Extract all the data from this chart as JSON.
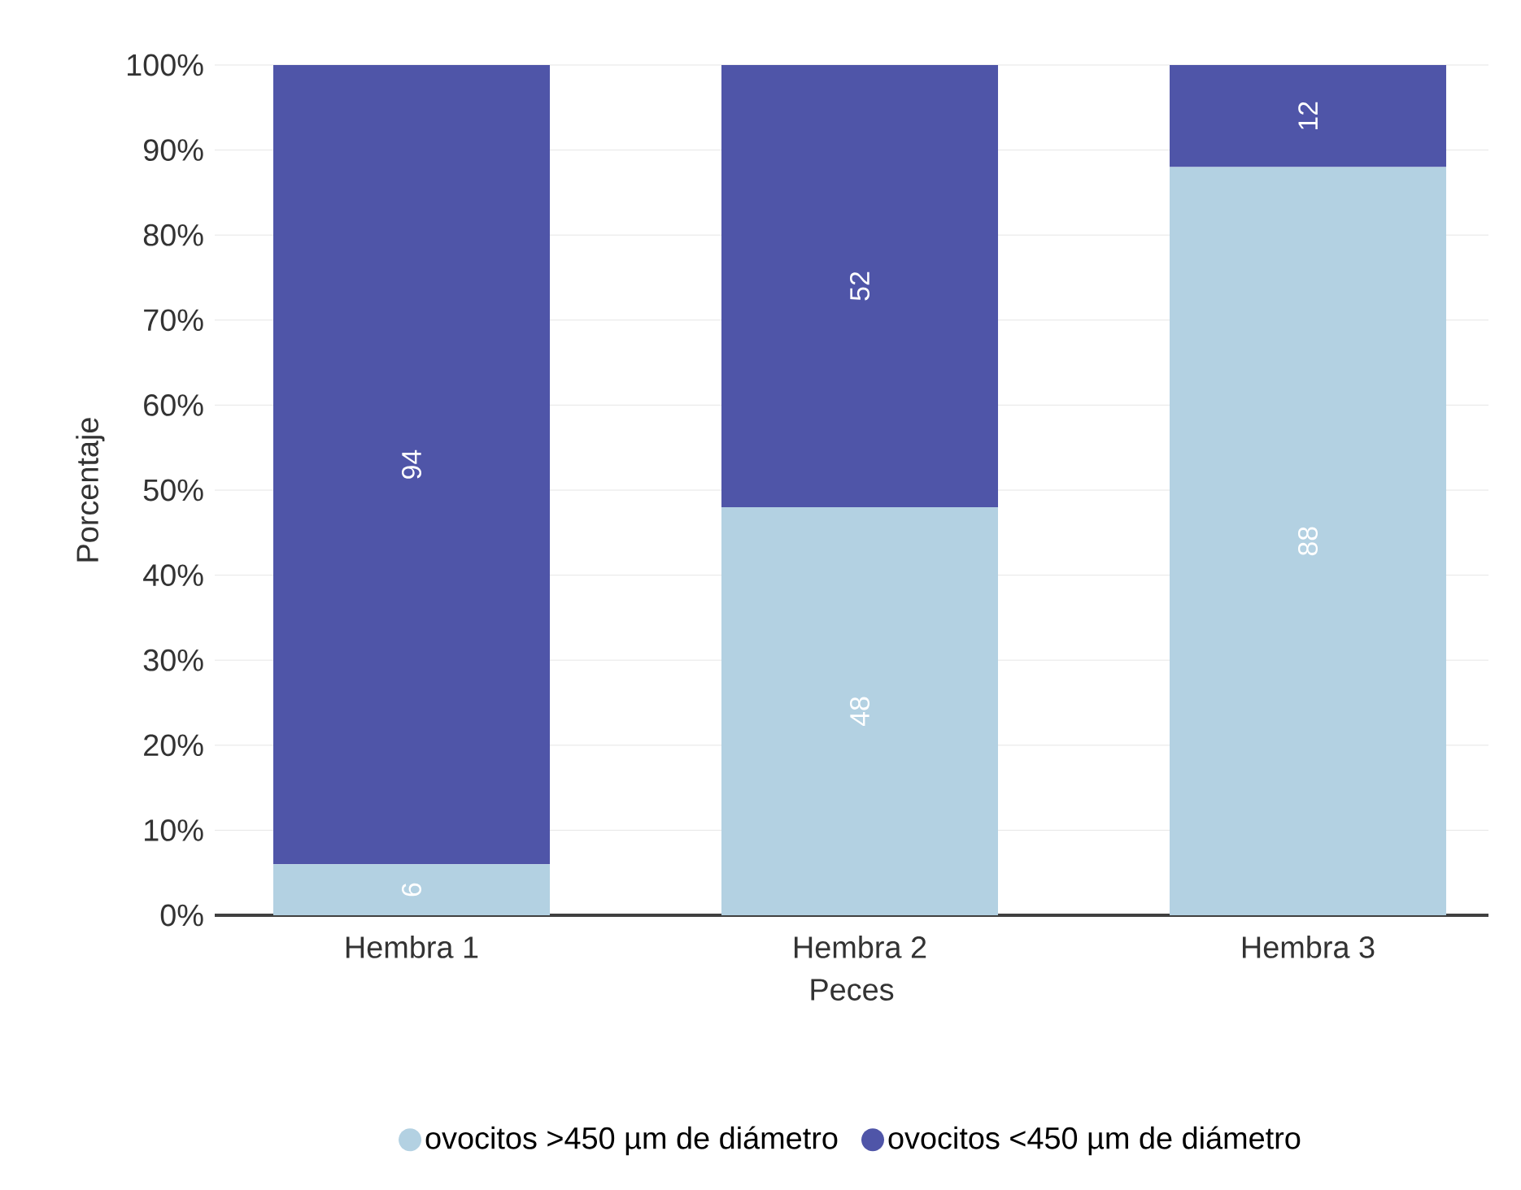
{
  "chart_data": {
    "type": "bar",
    "stacked": true,
    "xlabel": "Peces",
    "ylabel": "Porcentaje",
    "categories": [
      "Hembra 1",
      "Hembra 2",
      "Hembra 3"
    ],
    "series": [
      {
        "name": "ovocitos >450 µm de diámetro",
        "color": "#b3d1e2",
        "values": [
          6,
          48,
          88
        ]
      },
      {
        "name": "ovocitos <450 µm de diámetro",
        "color": "#4f55a8",
        "values": [
          94,
          52,
          12
        ]
      }
    ],
    "ylim": [
      0,
      100
    ],
    "yticks": [
      {
        "value": 0,
        "label": "0%"
      },
      {
        "value": 10,
        "label": "10%"
      },
      {
        "value": 20,
        "label": "20%"
      },
      {
        "value": 30,
        "label": "30%"
      },
      {
        "value": 40,
        "label": "40%"
      },
      {
        "value": 50,
        "label": "50%"
      },
      {
        "value": 60,
        "label": "60%"
      },
      {
        "value": 70,
        "label": "70%"
      },
      {
        "value": 80,
        "label": "80%"
      },
      {
        "value": 90,
        "label": "90%"
      },
      {
        "value": 100,
        "label": "100%"
      }
    ],
    "grid": "y",
    "legend": "bottom",
    "data_labels": true
  }
}
